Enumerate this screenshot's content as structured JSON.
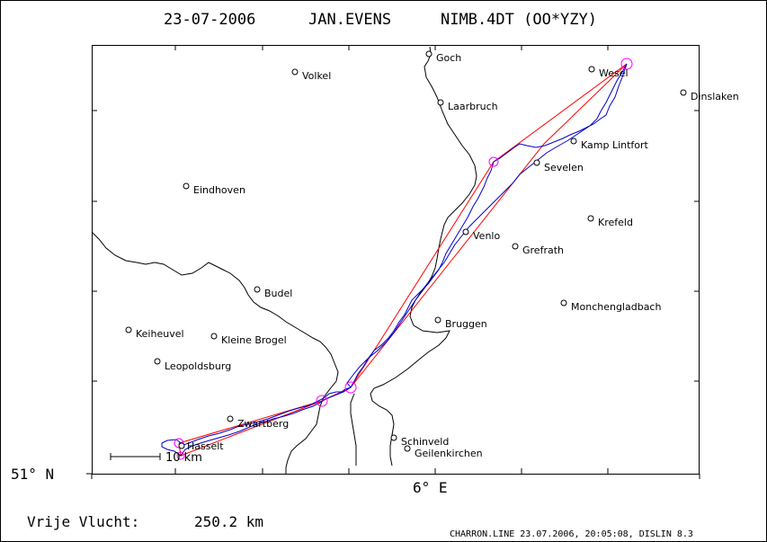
{
  "header": {
    "date": "23-07-2006",
    "pilot": "JAN.EVENS",
    "glider": "NIMB.4DT (OO*YZY)"
  },
  "axes": {
    "lat_label": "51° N",
    "lon_label": "6° E"
  },
  "scale_bar": {
    "label": "10 km"
  },
  "places": [
    {
      "name": "Goch"
    },
    {
      "name": "Volkel"
    },
    {
      "name": "Wesel"
    },
    {
      "name": "Dinslaken"
    },
    {
      "name": "Laarbruch"
    },
    {
      "name": "Kamp Lintfort"
    },
    {
      "name": "Sevelen"
    },
    {
      "name": "Eindhoven"
    },
    {
      "name": "Krefeld"
    },
    {
      "name": "Venlo"
    },
    {
      "name": "Grefrath"
    },
    {
      "name": "Budel"
    },
    {
      "name": "Monchengladbach"
    },
    {
      "name": "Bruggen"
    },
    {
      "name": "Keiheuvel"
    },
    {
      "name": "Kleine Brogel"
    },
    {
      "name": "Leopoldsburg"
    },
    {
      "name": "Zwartberg"
    },
    {
      "name": "Hasselt"
    },
    {
      "name": "Schinveld"
    },
    {
      "name": "Geilenkirchen"
    }
  ],
  "footer": {
    "flight_type": "Vrije Vlucht:",
    "distance": "250.2 km",
    "credit": "CHARRON.LINE 23.07.2006, 20:05:08, DISLIN 8.3"
  },
  "colors": {
    "task_line": "#ff0000",
    "track": "#0000cc",
    "turnpoint": "#ff00ff",
    "border": "#000000"
  }
}
